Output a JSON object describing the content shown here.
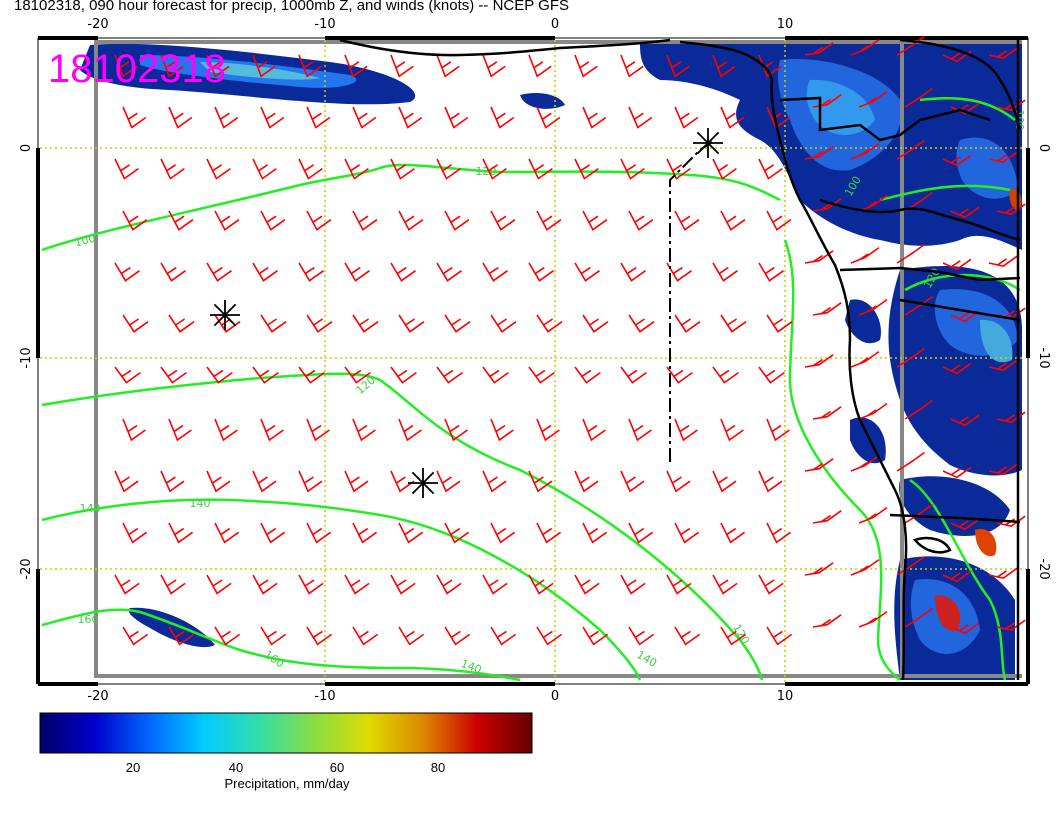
{
  "title": "18102318, 090 hour forecast for precip, 1000mb Z, and winds (knots) -- NCEP GFS",
  "stamp": "18102318",
  "lon_ticks": [
    "-20",
    "-10",
    "0",
    "10"
  ],
  "lat_ticks": [
    "0",
    "-10",
    "-20"
  ],
  "colorbar": {
    "label": "Precipitation, mm/day",
    "ticks": [
      "20",
      "40",
      "60",
      "80"
    ],
    "colors": [
      "#000066",
      "#0000cc",
      "#0066ff",
      "#00ccff",
      "#33ddaa",
      "#88dd44",
      "#dddd00",
      "#dd8800",
      "#cc0000",
      "#660000"
    ]
  },
  "contours": [
    "100",
    "120",
    "140",
    "140",
    "160",
    "160",
    "120",
    "140",
    "120",
    "140",
    "100",
    "120",
    "100"
  ],
  "colors": {
    "wind_barb": "#ff0000",
    "height_contour": "#22ee22",
    "coast": "#000000",
    "gridline": "#cccc00",
    "frame": "#888888"
  },
  "markers": [
    "asterisk",
    "asterisk",
    "asterisk"
  ]
}
